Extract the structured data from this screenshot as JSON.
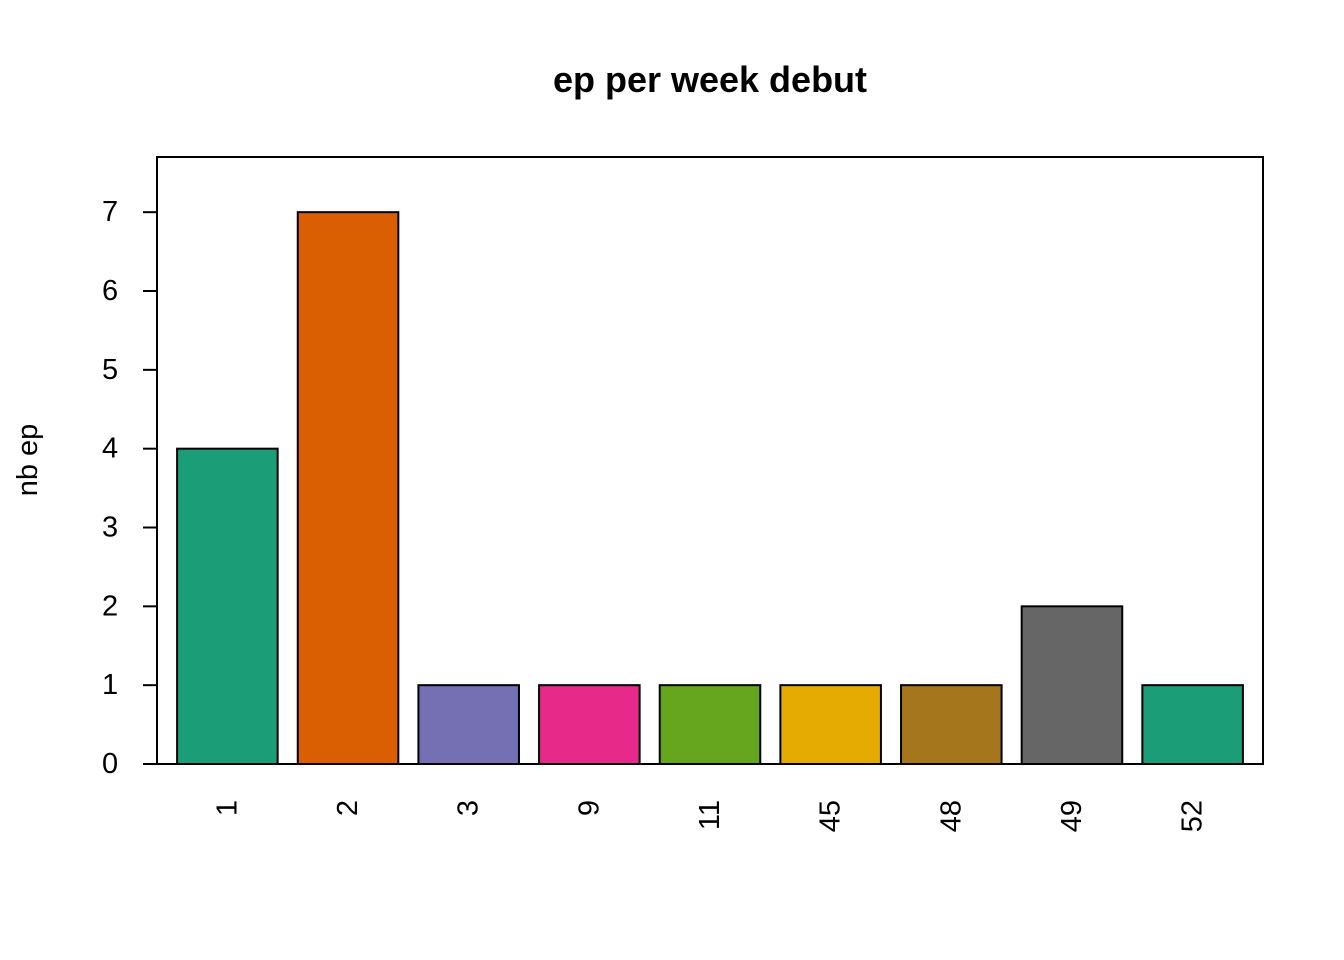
{
  "chart_data": {
    "type": "bar",
    "title": "ep per week debut",
    "xlabel": "",
    "ylabel": "nb ep",
    "categories": [
      "1",
      "2",
      "3",
      "9",
      "11",
      "45",
      "48",
      "49",
      "52"
    ],
    "values": [
      4,
      7,
      1,
      1,
      1,
      1,
      1,
      2,
      1
    ],
    "colors": [
      "#1B9E77",
      "#D95F02",
      "#7570B3",
      "#E7298A",
      "#66A61E",
      "#E6AB02",
      "#A6761D",
      "#666666",
      "#1B9E77"
    ],
    "yticks": [
      0,
      1,
      2,
      3,
      4,
      5,
      6,
      7
    ],
    "ylim": [
      0,
      7.7
    ],
    "grid": false,
    "legend": "none"
  }
}
